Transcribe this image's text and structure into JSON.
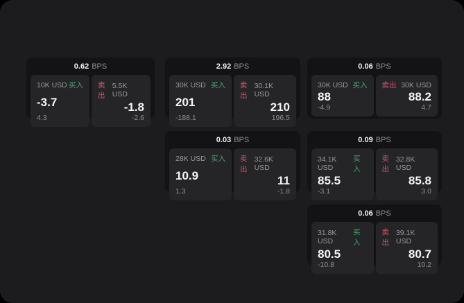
{
  "labels": {
    "buy": "买入",
    "sell": "卖出",
    "bps_unit": "BPS"
  },
  "colors": {
    "background": "#000000",
    "surface": "#1c1c1e",
    "card": "#131315",
    "panel": "#252528",
    "buy_green": "#3fa66b",
    "sell_red": "#cf5368",
    "text_primary": "#f5f5f5",
    "text_secondary": "#8e8e93"
  },
  "cards": [
    {
      "bps": "0.62",
      "buy": {
        "amount": "10K USD",
        "quote": "-3.7",
        "sub": "4.3"
      },
      "sell": {
        "amount": "5.5K USD",
        "quote": "-1.8",
        "sub": "-2.6"
      }
    },
    {
      "bps": "2.92",
      "buy": {
        "amount": "30K USD",
        "quote": "201",
        "sub": "-188.1"
      },
      "sell": {
        "amount": "30.1K USD",
        "quote": "210",
        "sub": "196.5"
      }
    },
    {
      "bps": "0.06",
      "buy": {
        "amount": "30K USD",
        "quote": "88",
        "sub": "-4.9"
      },
      "sell": {
        "amount": "30K USD",
        "quote": "88.2",
        "sub": "4.7"
      }
    },
    {
      "bps": "0.03",
      "buy": {
        "amount": "28K USD",
        "quote": "10.9",
        "sub": "1.3"
      },
      "sell": {
        "amount": "32.6K USD",
        "quote": "11",
        "sub": "-1.8"
      }
    },
    {
      "bps": "0.09",
      "buy": {
        "amount": "34.1K USD",
        "quote": "85.5",
        "sub": "-3.1"
      },
      "sell": {
        "amount": "32.8K USD",
        "quote": "85.8",
        "sub": "3.0"
      }
    },
    {
      "bps": "0.06",
      "buy": {
        "amount": "31.8K USD",
        "quote": "80.5",
        "sub": "-10.8"
      },
      "sell": {
        "amount": "39.1K USD",
        "quote": "80.7",
        "sub": "10.2"
      }
    }
  ]
}
